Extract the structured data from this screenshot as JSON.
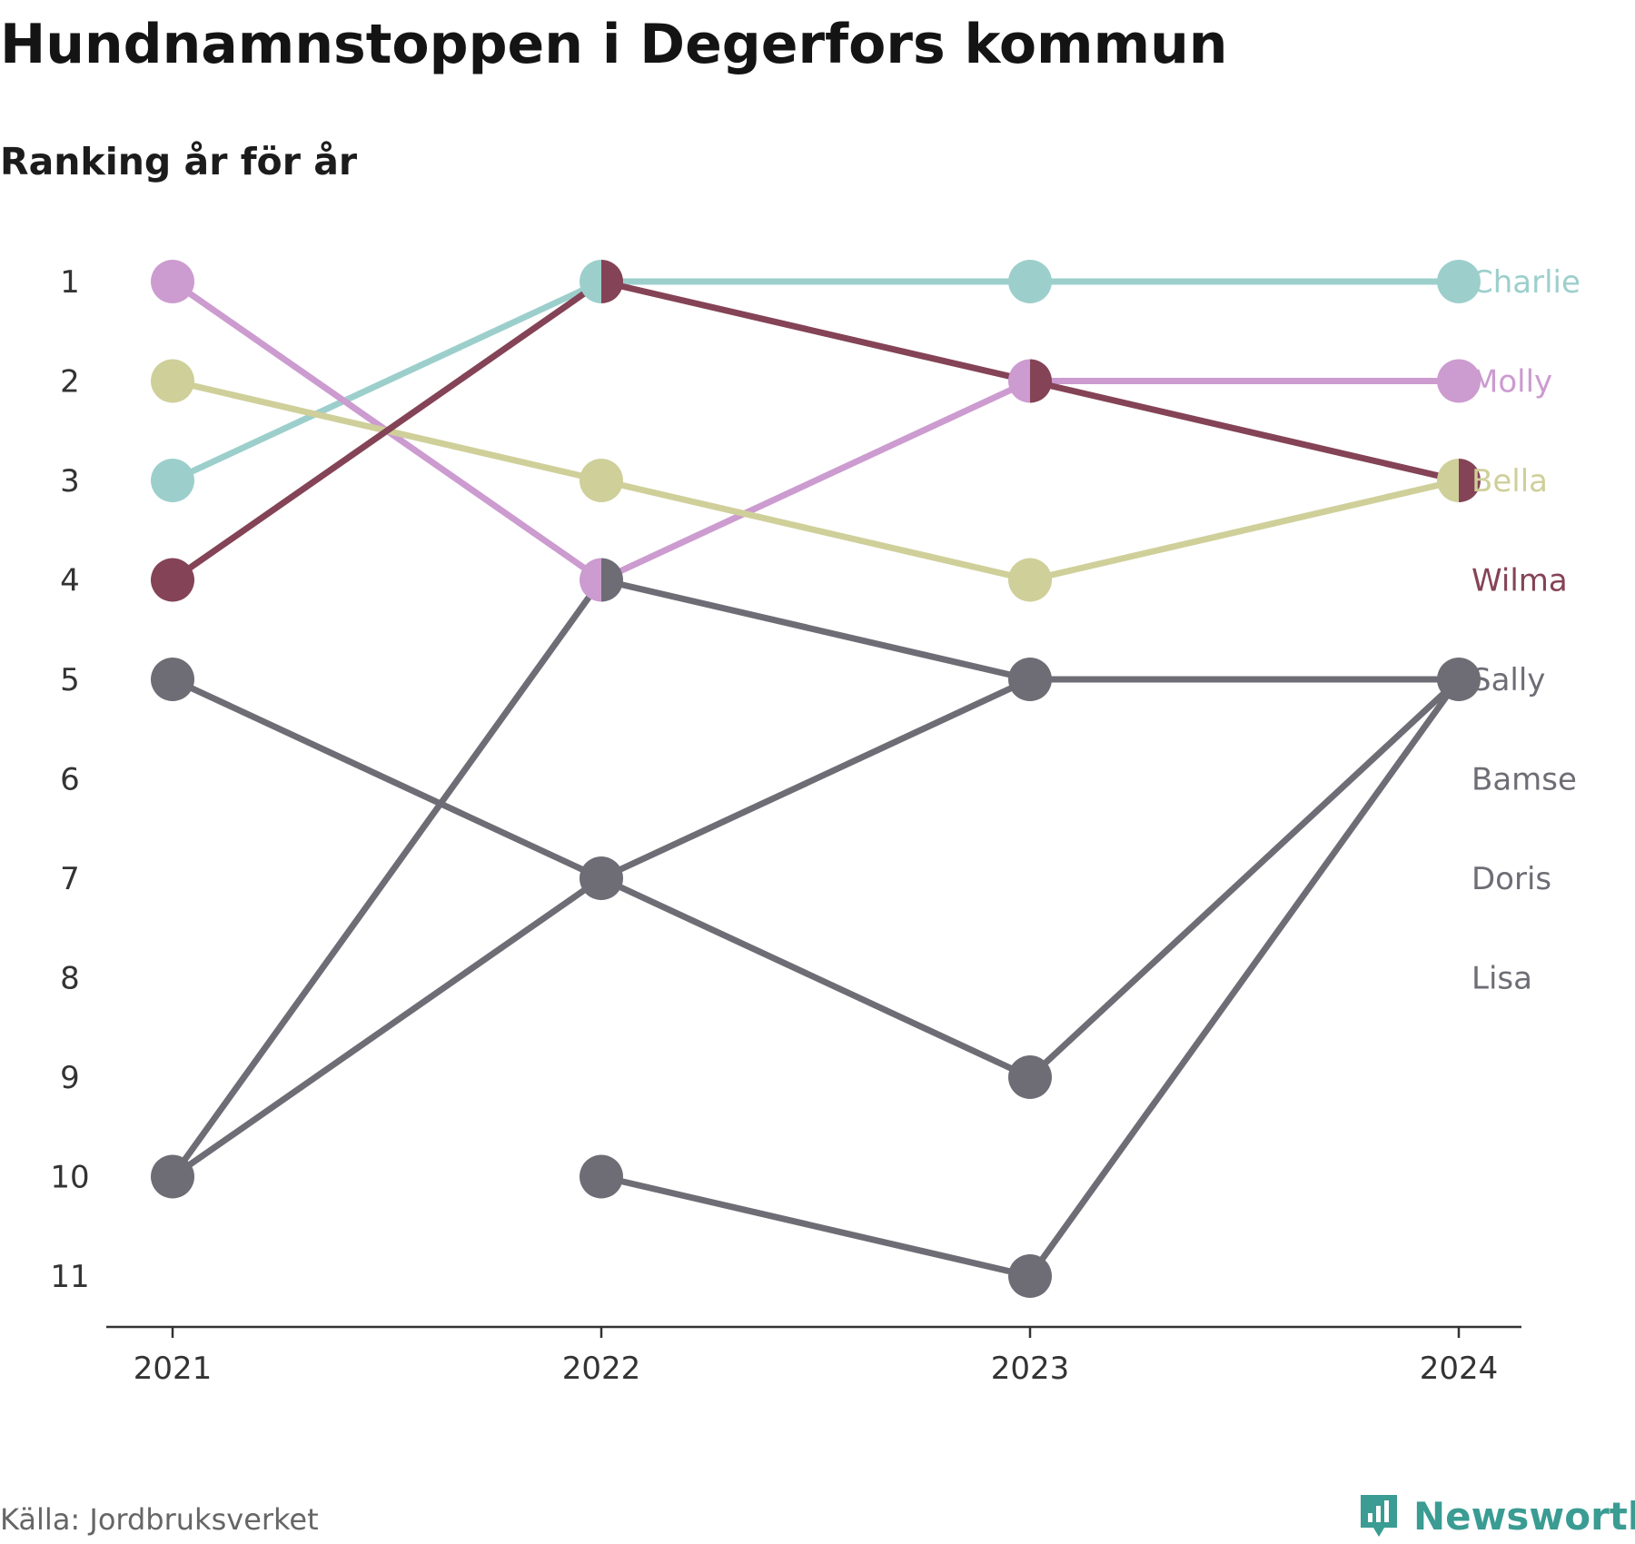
{
  "title": "Hundnamnstoppen i Degerfors kommun",
  "subtitle": "Ranking år för år",
  "source": "Källa: Jordbruksverket",
  "brand": {
    "name": "Newsworthy",
    "icon": "newsworthy-logo-icon",
    "color": "#3a9c93"
  },
  "chart_data": {
    "type": "line",
    "title": "Hundnamnstoppen i Degerfors kommun",
    "subtitle": "Ranking år för år",
    "x": [
      "2021",
      "2022",
      "2023",
      "2024"
    ],
    "y_ticks": [
      "1",
      "2",
      "3",
      "4",
      "5",
      "6",
      "7",
      "8",
      "9",
      "10",
      "11"
    ],
    "ylim": [
      1,
      11
    ],
    "y_inverted": true,
    "grid": false,
    "legend": "direct labels at right end of lines",
    "series": [
      {
        "name": "Charlie",
        "values": [
          3,
          1,
          1,
          1
        ],
        "color": "#9ccfcc"
      },
      {
        "name": "Molly",
        "values": [
          1,
          4,
          2,
          2
        ],
        "color": "#cc9bd0"
      },
      {
        "name": "Bella",
        "values": [
          2,
          3,
          4,
          3
        ],
        "color": "#cfcf9a"
      },
      {
        "name": "Wilma",
        "values": [
          4,
          1,
          2,
          3
        ],
        "color": "#844356"
      },
      {
        "name": "Sally",
        "values": [
          10,
          4,
          5,
          5
        ],
        "color": "#6e6d75"
      },
      {
        "name": "Bamse",
        "values": [
          5,
          7,
          9,
          5
        ],
        "color": "#6e6d75"
      },
      {
        "name": "Doris",
        "values": [
          10,
          7,
          5,
          5
        ],
        "color": "#6e6d75"
      },
      {
        "name": "Lisa",
        "values": [
          null,
          10,
          11,
          5
        ],
        "color": "#6e6d75"
      }
    ],
    "end_labels": [
      {
        "name": "Charlie",
        "rank": 1
      },
      {
        "name": "Molly",
        "rank": 2
      },
      {
        "name": "Bella",
        "rank": 3
      },
      {
        "name": "Wilma",
        "rank": 4
      },
      {
        "name": "Sally",
        "rank": 5
      },
      {
        "name": "Bamse",
        "rank": 6
      },
      {
        "name": "Doris",
        "rank": 7
      },
      {
        "name": "Lisa",
        "rank": 8
      }
    ]
  }
}
